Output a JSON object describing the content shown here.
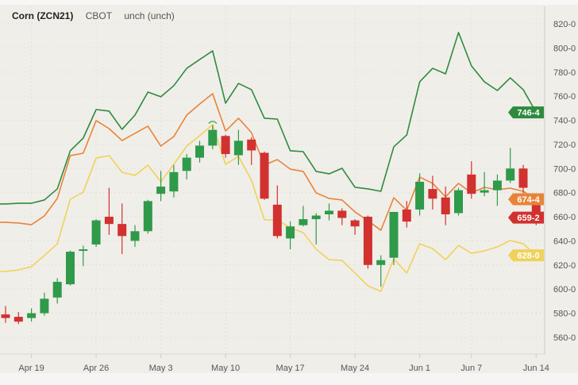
{
  "header": {
    "symbol": "Corn (ZCN21)",
    "exchange": "CBOT",
    "change": "unch (unch)"
  },
  "colors": {
    "up": "#2f9a4a",
    "down": "#d1312f",
    "upper_band": "#2e8b3e",
    "middle_band": "#e8843a",
    "lower_band": "#efd25a",
    "background": "#f0eee9"
  },
  "chart_data": {
    "type": "candlestick",
    "title": "Corn (ZCN21)",
    "ylim": [
      560,
      820
    ],
    "yticks": [
      820,
      800,
      780,
      760,
      740,
      720,
      700,
      680,
      660,
      640,
      620,
      600,
      580,
      560
    ],
    "ytick_labels": [
      "820-0",
      "800-0",
      "780-0",
      "760-0",
      "740-0",
      "720-0",
      "700-0",
      "680-0",
      "660-0",
      "640-0",
      "620-0",
      "600-0",
      "580-0",
      "560-0"
    ],
    "xticks": [
      {
        "index": 2,
        "label": "Apr 19"
      },
      {
        "index": 7,
        "label": "Apr 26"
      },
      {
        "index": 12,
        "label": "May 3"
      },
      {
        "index": 17,
        "label": "May 10"
      },
      {
        "index": 22,
        "label": "May 17"
      },
      {
        "index": 27,
        "label": "May 24"
      },
      {
        "index": 32,
        "label": "Jun 1"
      },
      {
        "index": 36,
        "label": "Jun 7"
      },
      {
        "index": 41,
        "label": "Jun 14"
      }
    ],
    "grid": true,
    "ohlc": [
      [
        579,
        586,
        572,
        576
      ],
      [
        577,
        581,
        571,
        573
      ],
      [
        576,
        584,
        573,
        580
      ],
      [
        580,
        597,
        578,
        592
      ],
      [
        593,
        609,
        588,
        606
      ],
      [
        604,
        632,
        603,
        631
      ],
      [
        632,
        636,
        619,
        633
      ],
      [
        637,
        658,
        635,
        657
      ],
      [
        660,
        684,
        645,
        654
      ],
      [
        654,
        671,
        629,
        644
      ],
      [
        640,
        653,
        635,
        648
      ],
      [
        648,
        674,
        646,
        673
      ],
      [
        679,
        698,
        673,
        685
      ],
      [
        681,
        703,
        676,
        697
      ],
      [
        698,
        712,
        691,
        709
      ],
      [
        709,
        723,
        705,
        719
      ],
      [
        719,
        736,
        716,
        732
      ],
      [
        727,
        728,
        709,
        712
      ],
      [
        711,
        732,
        703,
        723
      ],
      [
        724,
        726,
        703,
        715
      ],
      [
        713,
        714,
        674,
        675
      ],
      [
        670,
        686,
        642,
        644
      ],
      [
        642,
        656,
        633,
        652
      ],
      [
        653,
        669,
        652,
        658
      ],
      [
        658,
        663,
        637,
        661
      ],
      [
        662,
        671,
        657,
        665
      ],
      [
        665,
        667,
        653,
        659
      ],
      [
        657,
        658,
        645,
        652
      ],
      [
        660,
        661,
        617,
        620
      ],
      [
        620,
        628,
        602,
        624
      ],
      [
        626,
        664,
        620,
        664
      ],
      [
        666,
        673,
        651,
        656
      ],
      [
        666,
        696,
        661,
        689
      ],
      [
        683,
        694,
        666,
        675
      ],
      [
        676,
        685,
        653,
        662
      ],
      [
        663,
        684,
        661,
        682
      ],
      [
        695,
        706,
        675,
        679
      ],
      [
        680,
        697,
        677,
        682
      ],
      [
        682,
        695,
        669,
        690
      ],
      [
        690,
        717,
        688,
        700
      ],
      [
        700,
        703,
        673,
        684
      ],
      [
        676,
        677,
        653,
        659.25
      ]
    ],
    "series": [
      {
        "name": "upper",
        "values": [
          670.6,
          671.2,
          671.2,
          673.9,
          683.1,
          714.7,
          725.2,
          748.9,
          747.6,
          732.5,
          744.3,
          763.4,
          759.5,
          768.7,
          783.1,
          790.4,
          797.6,
          754.2,
          770.6,
          765.4,
          741.7,
          741.0,
          714.7,
          714.0,
          697.6,
          695.6,
          700.2,
          684.4,
          683.1,
          681.1,
          718.0,
          727.8,
          771.9,
          783.1,
          778.5,
          812.8,
          785.1,
          771.9,
          764.7,
          775.2,
          765.4,
          746.5
        ]
      },
      {
        "name": "middle",
        "values": [
          655.4,
          654.8,
          653.4,
          660.7,
          675.2,
          710.7,
          712.7,
          739.7,
          733.1,
          723.2,
          729.2,
          735.1,
          718.6,
          726.5,
          744.3,
          753.5,
          762.1,
          731.1,
          741.7,
          729.8,
          702.8,
          707.4,
          699.5,
          697.6,
          679.8,
          675.2,
          673.9,
          664.0,
          656.7,
          648.8,
          675.8,
          665.3,
          692.9,
          687.7,
          676.5,
          687.7,
          679.8,
          684.4,
          682.4,
          683.7,
          681.1,
          674.5
        ]
      },
      {
        "name": "lower",
        "values": [
          614.6,
          615.9,
          618.6,
          627.8,
          637.6,
          674.5,
          680.4,
          708.7,
          710.7,
          696.9,
          694.3,
          702.8,
          689.0,
          703.5,
          718.6,
          727.2,
          736.4,
          703.5,
          710.1,
          690.3,
          657.4,
          657.4,
          650.8,
          646.8,
          633.0,
          624.4,
          623.8,
          613.3,
          602.7,
          598.1,
          625.1,
          613.3,
          637.6,
          633.6,
          624.4,
          636.2,
          629.7,
          631.7,
          635.0,
          640.3,
          637.6,
          628.0
        ]
      }
    ],
    "price_tags": [
      {
        "name": "upper",
        "value": 746.5,
        "label": "746-4",
        "color": "#2e8b3e"
      },
      {
        "name": "middle",
        "value": 674.5,
        "label": "674-4",
        "color": "#e8843a"
      },
      {
        "name": "last",
        "value": 659.25,
        "label": "659-2",
        "color": "#d1312f"
      },
      {
        "name": "lower",
        "value": 628.0,
        "label": "628-0",
        "color": "#efd25a"
      }
    ]
  }
}
